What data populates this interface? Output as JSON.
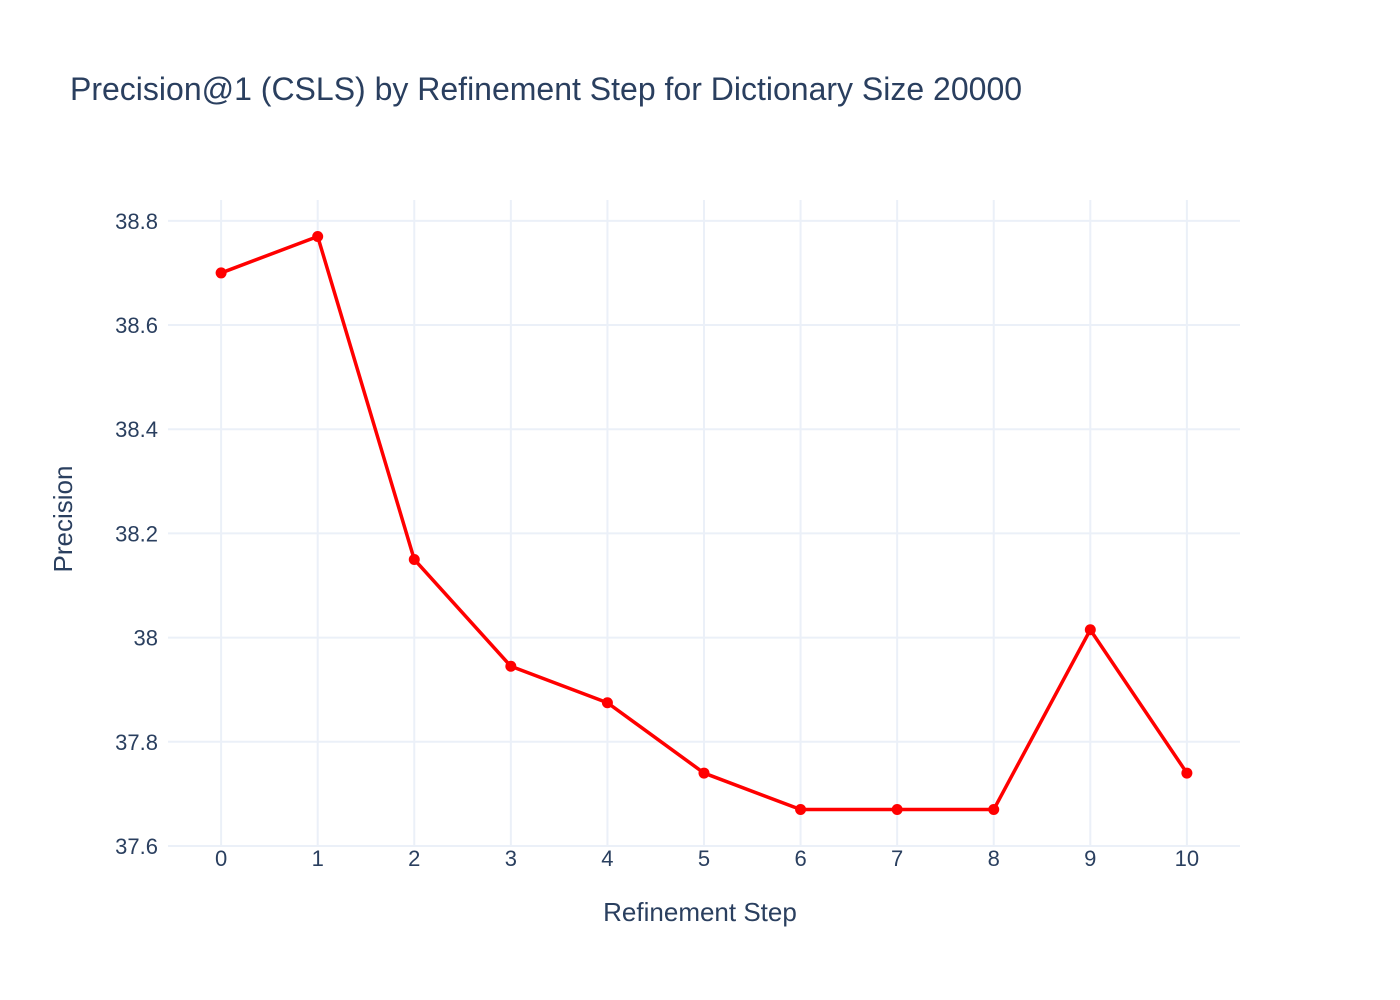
{
  "chart_data": {
    "type": "line",
    "title": "Precision@1 (CSLS) by Refinement Step for Dictionary Size 20000",
    "xlabel": "Refinement Step",
    "ylabel": "Precision",
    "x": [
      0,
      1,
      2,
      3,
      4,
      5,
      6,
      7,
      8,
      9,
      10
    ],
    "series": [
      {
        "values": [
          38.7,
          38.77,
          38.15,
          37.945,
          37.875,
          37.74,
          37.67,
          37.67,
          37.67,
          38.015,
          37.74
        ],
        "color": "#ff0000"
      }
    ],
    "xticks": [
      "0",
      "1",
      "2",
      "3",
      "4",
      "5",
      "6",
      "7",
      "8",
      "9",
      "10"
    ],
    "yticks": [
      37.6,
      37.8,
      38,
      38.2,
      38.4,
      38.6,
      38.8
    ],
    "ytick_labels": [
      "37.6",
      "37.8",
      "38",
      "38.2",
      "38.4",
      "38.6",
      "38.8"
    ],
    "xlim": [
      -0.55,
      10.55
    ],
    "ylim": [
      37.6,
      38.84
    ],
    "grid": true,
    "legend": "none",
    "markers": true
  }
}
